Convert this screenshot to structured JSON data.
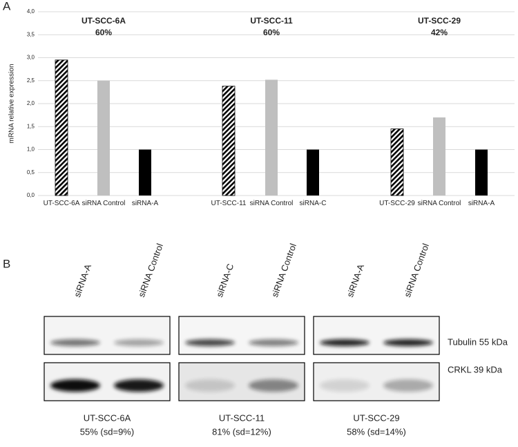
{
  "panel_labels": [
    "A",
    "B"
  ],
  "chart_data": {
    "type": "bar",
    "y_label": "mRNA relative expression",
    "categories": [
      "UT-SCC-6A",
      "siRNA Control",
      "siRNA-A",
      "UT-SCC-11",
      "siRNA Control",
      "siRNA-C",
      "UT-SCC-29",
      "siRNA Control",
      "siRNA-A"
    ],
    "values": [
      2.95,
      2.5,
      1.0,
      2.38,
      2.52,
      1.0,
      1.45,
      1.7,
      1.0
    ],
    "colors": [
      "hatch",
      "#bfbfbf",
      "#000000",
      "hatch",
      "#bfbfbf",
      "#000000",
      "hatch",
      "#bfbfbf",
      "#000000"
    ],
    "ylim": [
      0,
      4
    ],
    "yticks": [
      {
        "value": 0,
        "label": "0,0"
      },
      {
        "value": 0.5,
        "label": "0,5"
      },
      {
        "value": 1,
        "label": "1,0"
      },
      {
        "value": 1.5,
        "label": "1,5"
      },
      {
        "value": 2,
        "label": "2,0"
      },
      {
        "value": 2.5,
        "label": "2,5"
      },
      {
        "value": 3,
        "label": "3,0"
      },
      {
        "value": 3.5,
        "label": "3,5"
      },
      {
        "value": 4,
        "label": "4,0"
      }
    ],
    "grid": true,
    "annotations": [
      {
        "title": "UT-SCC-6A",
        "text": "60%"
      },
      {
        "title": "UT-SCC-11",
        "text": "60%"
      },
      {
        "title": "UT-SCC-29",
        "text": "42%"
      }
    ]
  },
  "blot": {
    "lanes": [
      "siRNA-A",
      "siRNA Control",
      "siRNA-C",
      "siRNA Control",
      "siRNA-A",
      "siRNA Control"
    ],
    "markers": [
      "Tubulin 55 kDa",
      "CRKL 39 kDa"
    ],
    "cell_lines": [
      {
        "name": "UT-SCC-6A",
        "knockdown": "55% (sd=9%)"
      },
      {
        "name": "UT-SCC-11",
        "knockdown": "81% (sd=12%)"
      },
      {
        "name": "UT-SCC-29",
        "knockdown": "58% (sd=14%)"
      }
    ]
  }
}
